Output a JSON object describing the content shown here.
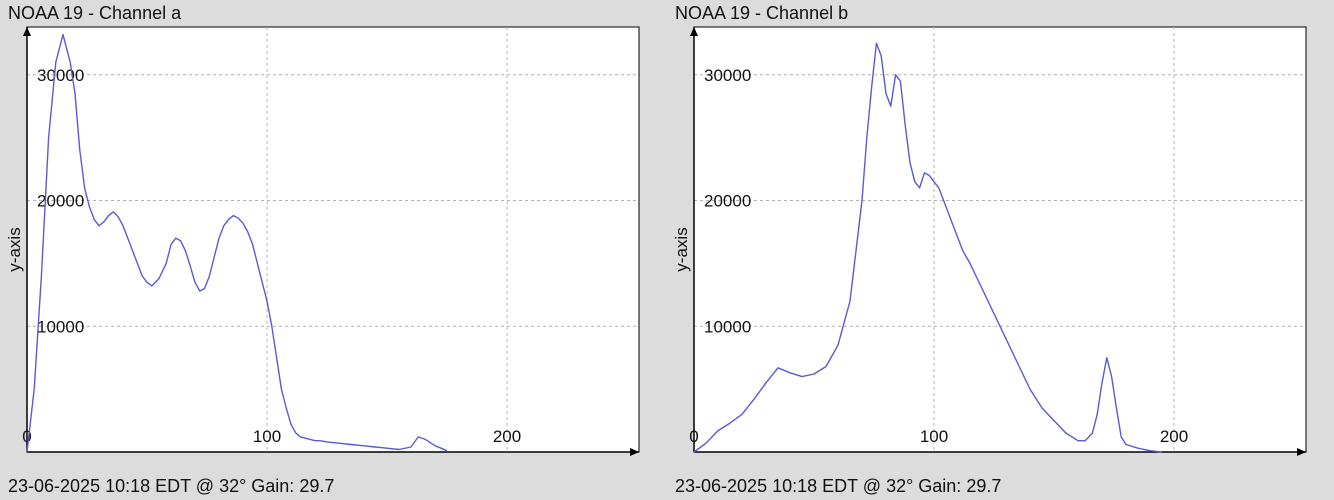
{
  "chart_data": [
    {
      "type": "line",
      "title": "NOAA 19 - Channel a",
      "footer": "23-06-2025 10:18 EDT @ 32° Gain: 29.7",
      "xlabel": "",
      "ylabel": "y-axis",
      "xlim": [
        0,
        255
      ],
      "ylim": [
        0,
        33800
      ],
      "xticks": [
        0,
        100,
        200
      ],
      "yticks": [
        10000,
        20000,
        30000
      ],
      "grid": true,
      "line_color": "#5a5ad8",
      "series": [
        {
          "x": [
            0,
            3,
            6,
            9,
            12,
            15,
            18,
            20,
            22,
            24,
            26,
            28,
            30,
            32,
            34,
            36,
            38,
            40,
            42,
            44,
            46,
            48,
            50,
            52,
            55,
            58,
            60,
            62,
            64,
            66,
            68,
            70,
            72,
            74,
            76,
            78,
            80,
            82,
            84,
            86,
            88,
            90,
            92,
            94,
            96,
            98,
            100,
            102,
            104,
            106,
            108,
            110,
            112,
            114,
            116,
            118,
            120,
            122,
            125,
            130,
            135,
            140,
            145,
            150,
            155,
            160,
            163,
            166,
            170,
            175
          ],
          "y": [
            0,
            5000,
            14000,
            25000,
            31000,
            33200,
            31000,
            28500,
            24000,
            21000,
            19500,
            18500,
            18000,
            18300,
            18800,
            19100,
            18700,
            18000,
            17000,
            16000,
            15000,
            14000,
            13500,
            13200,
            13800,
            15000,
            16500,
            17000,
            16800,
            16000,
            14800,
            13500,
            12800,
            13000,
            14000,
            15500,
            17000,
            18000,
            18500,
            18800,
            18600,
            18200,
            17500,
            16500,
            15000,
            13500,
            12000,
            10000,
            7500,
            5000,
            3500,
            2200,
            1500,
            1200,
            1100,
            1000,
            900,
            900,
            800,
            700,
            600,
            500,
            400,
            300,
            200,
            400,
            1200,
            1000,
            500,
            100
          ]
        }
      ]
    },
    {
      "type": "line",
      "title": "NOAA 19 - Channel b",
      "footer": "23-06-2025 10:18 EDT @ 32° Gain: 29.7",
      "xlabel": "",
      "ylabel": "y-axis",
      "xlim": [
        0,
        255
      ],
      "ylim": [
        0,
        33800
      ],
      "xticks": [
        0,
        100,
        200
      ],
      "yticks": [
        10000,
        20000,
        30000
      ],
      "grid": true,
      "line_color": "#5a5ad8",
      "series": [
        {
          "x": [
            0,
            5,
            10,
            15,
            20,
            25,
            30,
            35,
            40,
            45,
            50,
            55,
            60,
            65,
            70,
            72,
            74,
            76,
            78,
            80,
            82,
            84,
            86,
            88,
            90,
            92,
            94,
            96,
            98,
            100,
            102,
            104,
            106,
            108,
            110,
            112,
            115,
            120,
            125,
            130,
            135,
            140,
            145,
            150,
            155,
            160,
            163,
            166,
            168,
            170,
            172,
            174,
            176,
            178,
            180,
            185,
            190,
            195
          ],
          "y": [
            0,
            700,
            1700,
            2300,
            3000,
            4200,
            5500,
            6700,
            6300,
            6000,
            6200,
            6800,
            8500,
            12000,
            20000,
            25000,
            29000,
            32500,
            31500,
            28500,
            27500,
            30000,
            29500,
            26000,
            23000,
            21500,
            21000,
            22200,
            22000,
            21500,
            21000,
            20000,
            19000,
            18000,
            17000,
            16000,
            15000,
            13000,
            11000,
            9000,
            7000,
            5000,
            3500,
            2500,
            1500,
            900,
            900,
            1500,
            3000,
            5500,
            7500,
            6000,
            3500,
            1200,
            600,
            300,
            100,
            0
          ]
        }
      ]
    }
  ]
}
